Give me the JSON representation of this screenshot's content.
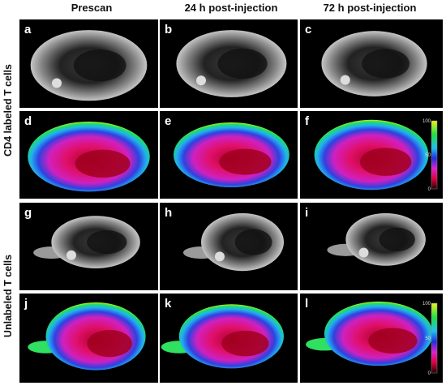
{
  "columns": [
    "Prescan",
    "24 h post-injection",
    "72 h post-injection"
  ],
  "row_groups": [
    "CD4 labeled T cells",
    "Unlabeled T cells"
  ],
  "panels": [
    {
      "label": "a"
    },
    {
      "label": "b"
    },
    {
      "label": "c"
    },
    {
      "label": "d"
    },
    {
      "label": "e"
    },
    {
      "label": "f"
    },
    {
      "label": "g"
    },
    {
      "label": "h"
    },
    {
      "label": "i"
    },
    {
      "label": "j"
    },
    {
      "label": "k"
    },
    {
      "label": "l"
    }
  ],
  "colorbar": {
    "ticks": [
      100,
      50,
      0
    ]
  }
}
